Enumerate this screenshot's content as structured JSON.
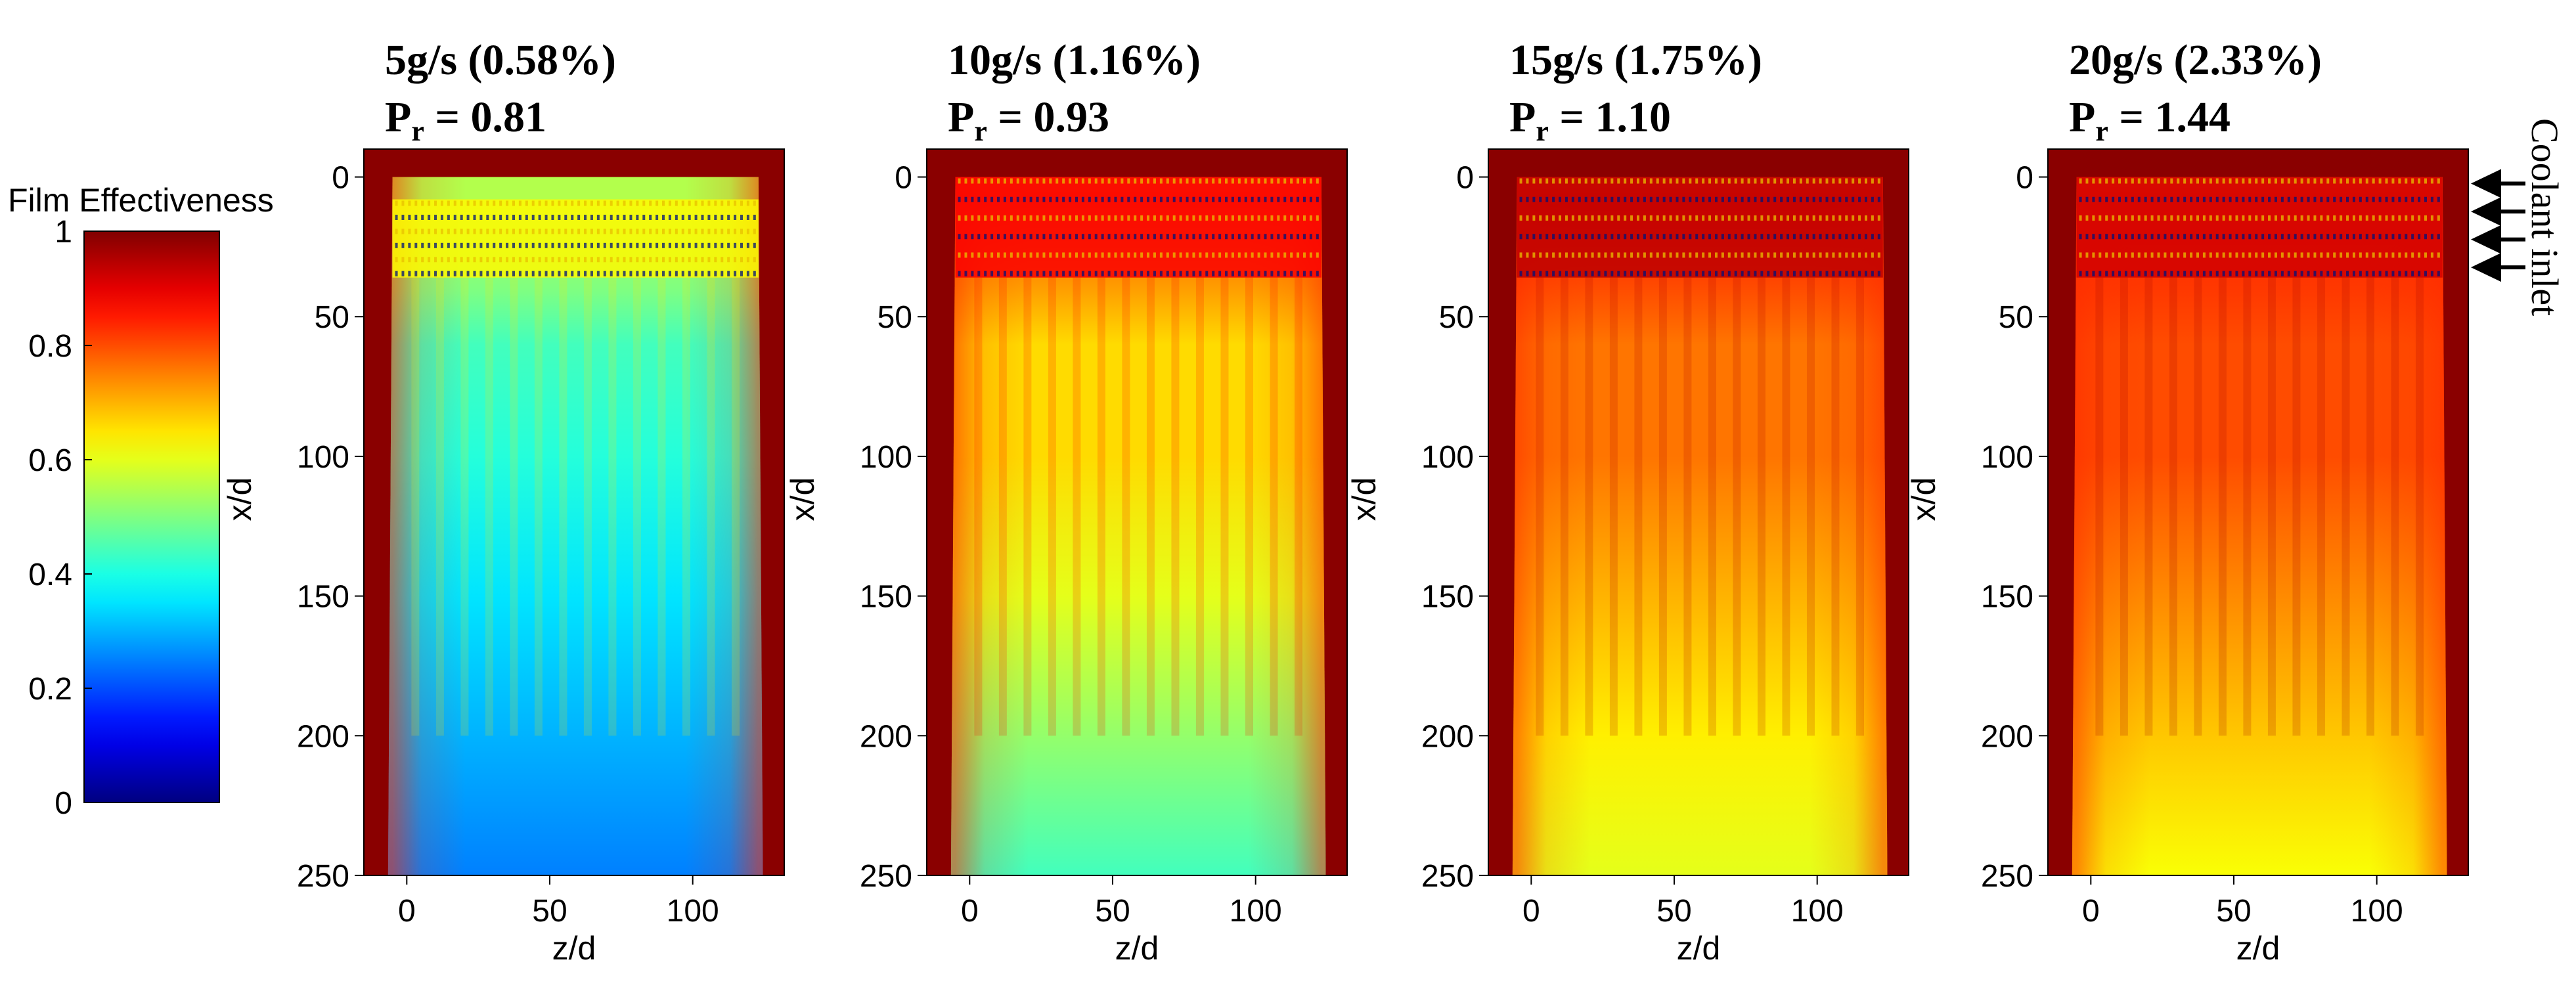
{
  "colorbar": {
    "title": "Film Effectiveness",
    "ticks": [
      0,
      0.2,
      0.4,
      0.6,
      0.8,
      1
    ],
    "tick_labels": [
      "0",
      "0.2",
      "0.4",
      "0.6",
      "0.8",
      "1"
    ],
    "range": [
      0,
      1
    ],
    "colormap": "jet"
  },
  "annotation": {
    "text": "Coolant inlet",
    "arrow_count": 4,
    "arrow_x_d": [
      0,
      10,
      20,
      30
    ],
    "color": "#000000"
  },
  "chart_data": [
    {
      "type": "heatmap",
      "title": "5g/s (0.58%)",
      "subtitle_symbol": "P",
      "subtitle_sub": "r",
      "subtitle_value": " = 0.81",
      "xlabel": "z/d",
      "ylabel": "x/d",
      "xlim": [
        -15,
        132
      ],
      "ylim": [
        250,
        -10
      ],
      "xticks": [
        0,
        50,
        100
      ],
      "yticks": [
        0,
        50,
        100,
        150,
        200,
        250
      ],
      "region": {
        "x_d": [
          -5,
          123
        ],
        "y_d": [
          0,
          250
        ]
      },
      "effectiveness_profile": {
        "x_d": [
          0,
          10,
          40,
          60,
          100,
          150,
          200,
          250
        ],
        "eta_center": [
          0.55,
          0.55,
          0.5,
          0.44,
          0.41,
          0.35,
          0.3,
          0.25
        ],
        "eta_edge": [
          0.5,
          0.5,
          0.46,
          0.42,
          0.4,
          0.37,
          0.33,
          0.28
        ]
      },
      "hole_rows_x_d": [
        8,
        36
      ]
    },
    {
      "type": "heatmap",
      "title": "10g/s (1.16%)",
      "subtitle_symbol": "P",
      "subtitle_sub": "r",
      "subtitle_value": " = 0.93",
      "xlabel": "z/d",
      "ylabel": "x/d",
      "xlim": [
        -15,
        132
      ],
      "ylim": [
        250,
        -10
      ],
      "xticks": [
        0,
        50,
        100
      ],
      "yticks": [
        0,
        50,
        100,
        150,
        200,
        250
      ],
      "region": {
        "x_d": [
          -5,
          123
        ],
        "y_d": [
          0,
          250
        ]
      },
      "effectiveness_profile": {
        "x_d": [
          0,
          10,
          40,
          60,
          100,
          150,
          200,
          250
        ],
        "eta_center": [
          0.78,
          0.8,
          0.72,
          0.66,
          0.66,
          0.6,
          0.52,
          0.44
        ],
        "eta_edge": [
          0.75,
          0.76,
          0.68,
          0.64,
          0.62,
          0.58,
          0.52,
          0.46
        ]
      },
      "hole_rows_x_d": [
        0,
        36
      ]
    },
    {
      "type": "heatmap",
      "title": "15g/s (1.75%)",
      "subtitle_symbol": "P",
      "subtitle_sub": "r",
      "subtitle_value": " = 1.10",
      "xlabel": "z/d",
      "ylabel": "x/d",
      "xlim": [
        -15,
        132
      ],
      "ylim": [
        250,
        -10
      ],
      "xticks": [
        0,
        50,
        100
      ],
      "yticks": [
        0,
        50,
        100,
        150,
        200,
        250
      ],
      "region": {
        "x_d": [
          -5,
          123
        ],
        "y_d": [
          0,
          250
        ]
      },
      "effectiveness_profile": {
        "x_d": [
          0,
          10,
          40,
          60,
          100,
          150,
          200,
          250
        ],
        "eta_center": [
          0.82,
          0.86,
          0.8,
          0.76,
          0.76,
          0.7,
          0.64,
          0.6
        ],
        "eta_edge": [
          0.75,
          0.78,
          0.72,
          0.7,
          0.66,
          0.64,
          0.6,
          0.58
        ]
      },
      "hole_rows_x_d": [
        0,
        36
      ]
    },
    {
      "type": "heatmap",
      "title": "20g/s (2.33%)",
      "subtitle_symbol": "P",
      "subtitle_sub": "r",
      "subtitle_value": " = 1.44",
      "xlabel": "z/d",
      "ylabel": "x/d",
      "xlim": [
        -15,
        132
      ],
      "ylim": [
        250,
        -10
      ],
      "xticks": [
        0,
        50,
        100
      ],
      "yticks": [
        0,
        50,
        100,
        150,
        200,
        250
      ],
      "region": {
        "x_d": [
          -5,
          123
        ],
        "y_d": [
          0,
          250
        ]
      },
      "effectiveness_profile": {
        "x_d": [
          0,
          10,
          40,
          60,
          100,
          150,
          200,
          250
        ],
        "eta_center": [
          0.8,
          0.84,
          0.82,
          0.8,
          0.8,
          0.74,
          0.68,
          0.62
        ],
        "eta_edge": [
          0.72,
          0.76,
          0.72,
          0.72,
          0.7,
          0.66,
          0.62,
          0.6
        ]
      },
      "hole_rows_x_d": [
        0,
        36
      ]
    }
  ]
}
